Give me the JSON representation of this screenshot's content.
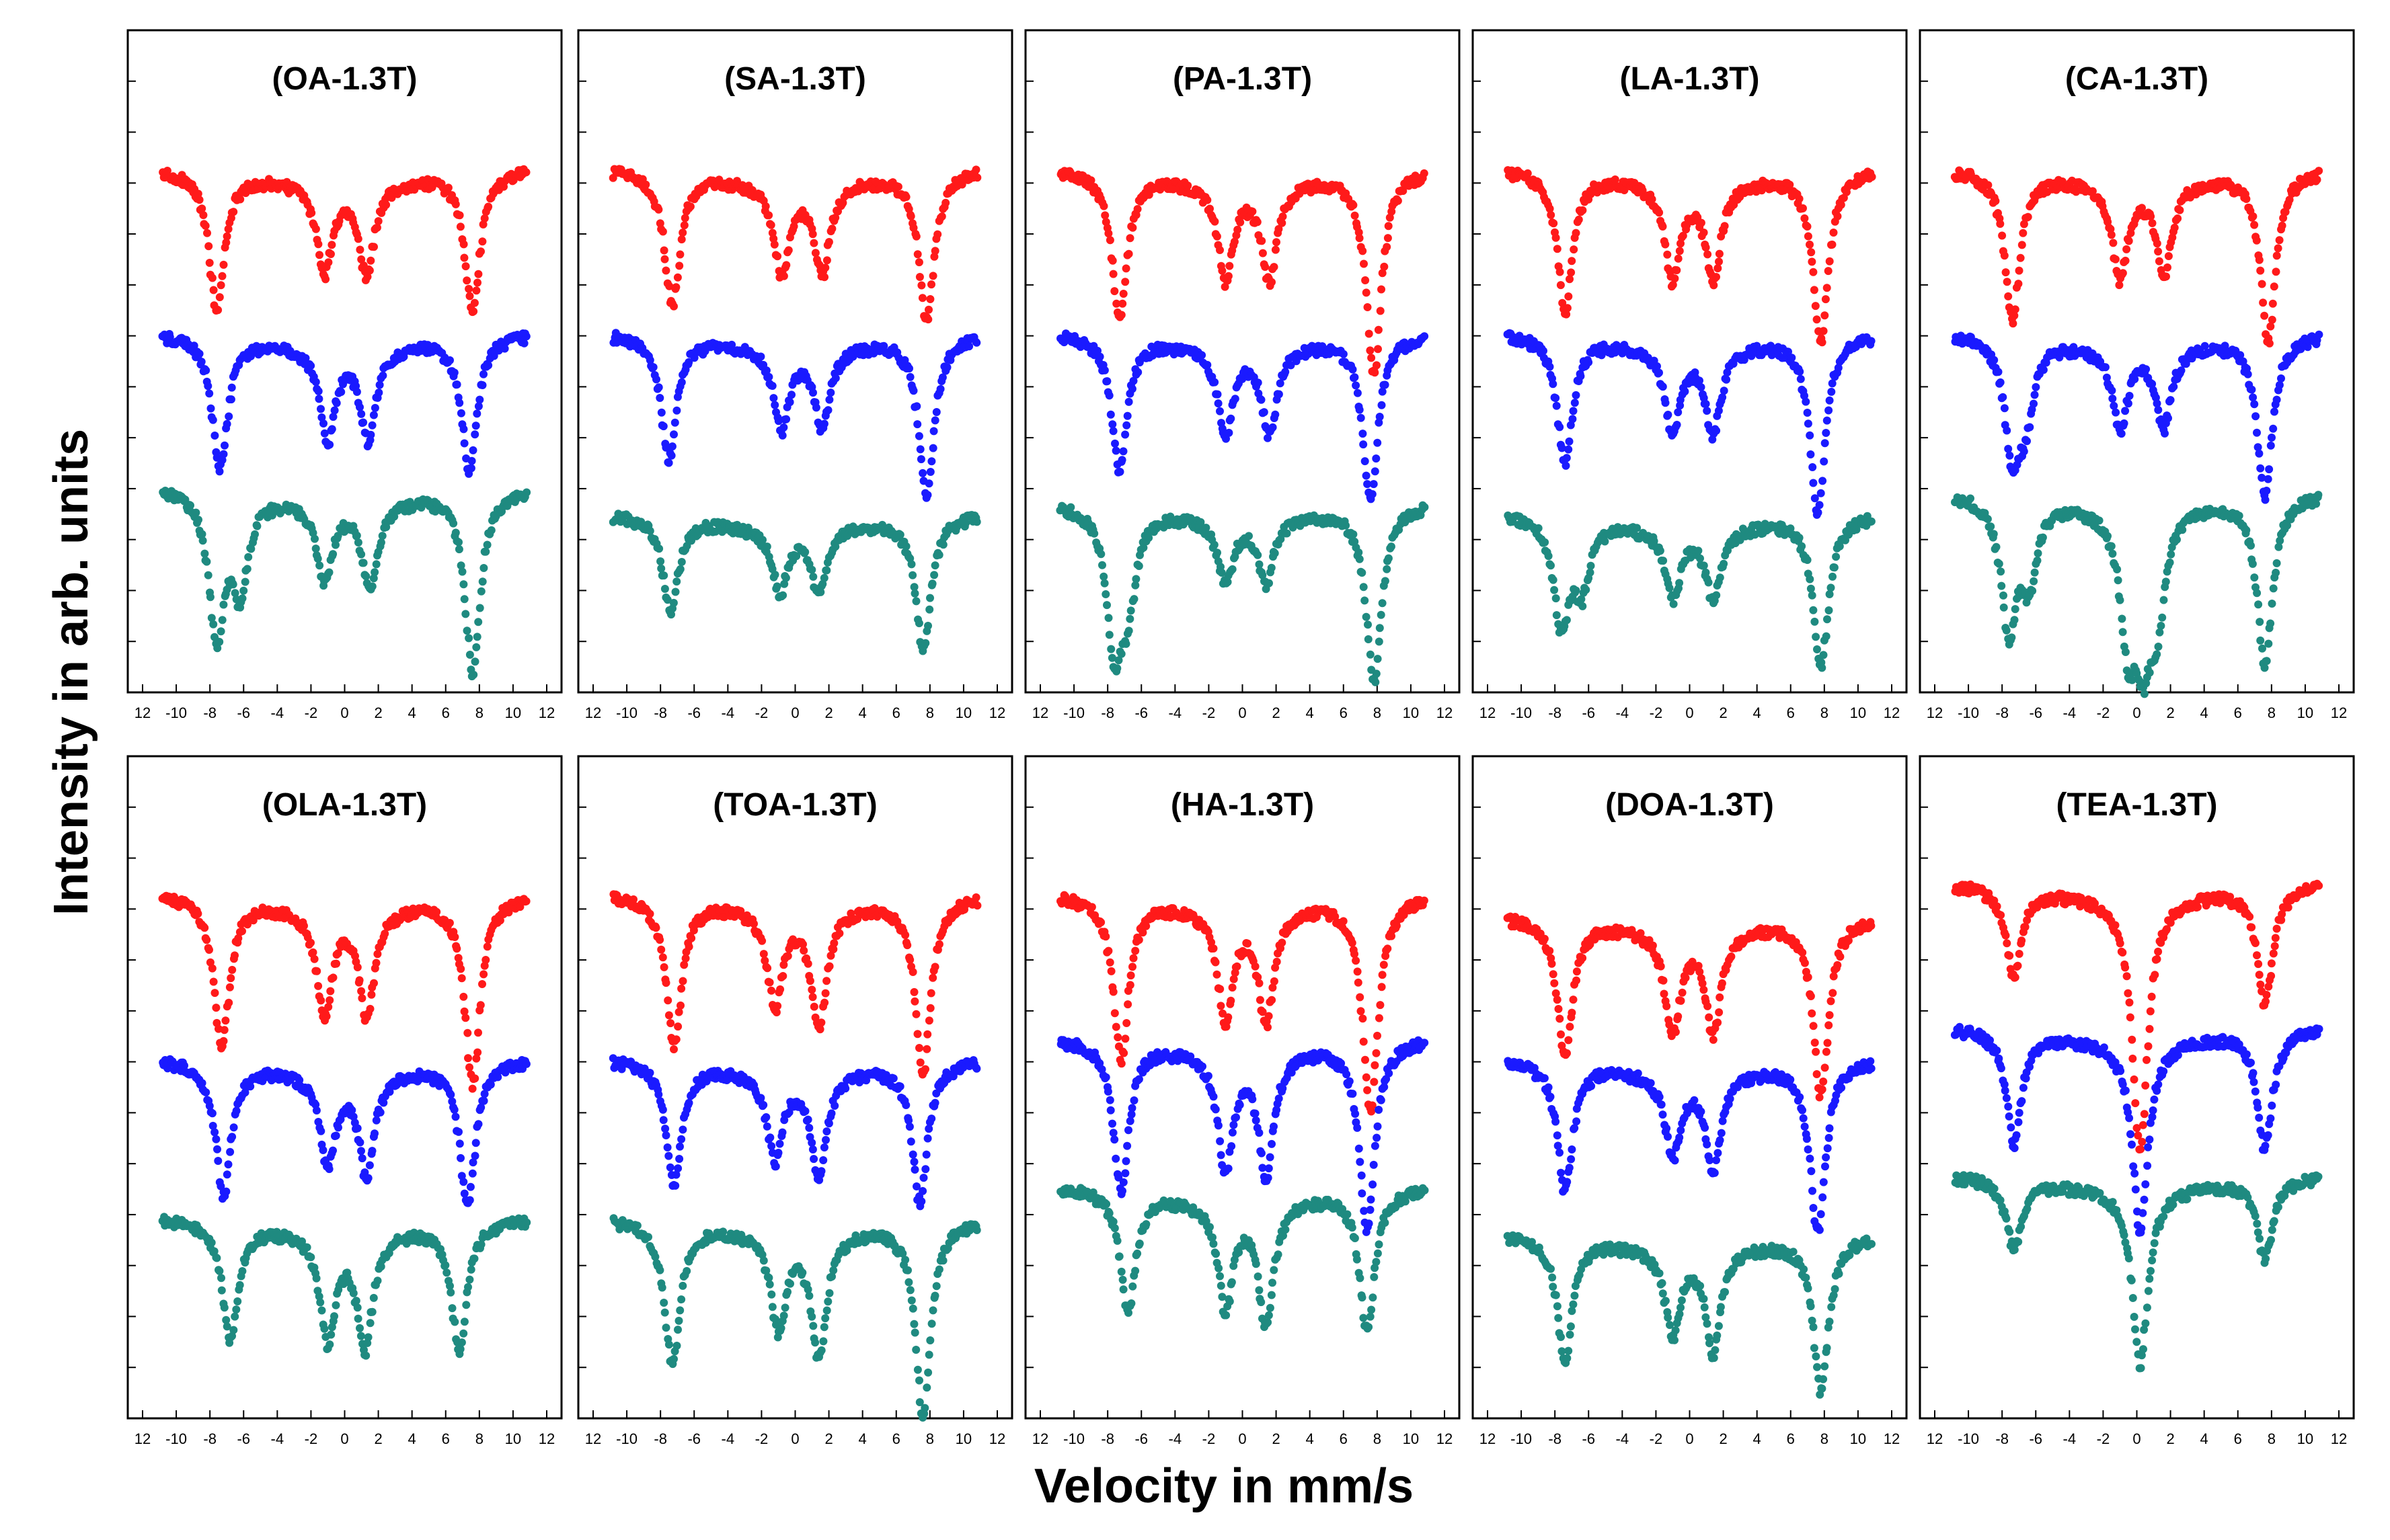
{
  "figure": {
    "ylabel": "Intensity in arb. units",
    "xlabel": "Velocity in mm/s",
    "series_colors": {
      "top": "#ff1a1a",
      "middle": "#1a1aff",
      "bottom": "#1f8a80"
    }
  },
  "chart_data": [
    {
      "type": "scatter",
      "title": "(OA-1.3T)",
      "xlabel": "Velocity in mm/s",
      "ylabel": "Intensity in arb. units",
      "xlim": [
        -12,
        12
      ],
      "xticks": [
        "12",
        "-10",
        "-8",
        "-6",
        "-4",
        "-2",
        "0",
        "2",
        "4",
        "6",
        "8",
        "10",
        "12"
      ],
      "series": [
        {
          "name": "top",
          "color": "#ff1a1a",
          "baseline": 0.93,
          "peaks": [
            [
              -7.6,
              0.26
            ],
            [
              -1.2,
              0.17
            ],
            [
              1.3,
              0.17
            ],
            [
              7.6,
              0.26
            ]
          ]
        },
        {
          "name": "middle",
          "color": "#1a1aff",
          "baseline": 0.62,
          "peaks": [
            [
              -7.4,
              0.25
            ],
            [
              -1.0,
              0.17
            ],
            [
              1.4,
              0.17
            ],
            [
              7.4,
              0.25
            ]
          ]
        },
        {
          "name": "bottom",
          "color": "#1f8a80",
          "baseline": 0.33,
          "peaks": [
            [
              -7.6,
              0.27
            ],
            [
              -6.2,
              0.18
            ],
            [
              -1.2,
              0.15
            ],
            [
              1.5,
              0.16
            ],
            [
              7.6,
              0.34
            ]
          ]
        }
      ]
    },
    {
      "type": "scatter",
      "title": "(SA-1.3T)",
      "xlabel": "Velocity in mm/s",
      "ylabel": "Intensity in arb. units",
      "xlim": [
        -12,
        12
      ],
      "xticks": [
        "12",
        "-10",
        "-8",
        "-6",
        "-4",
        "-2",
        "0",
        "2",
        "4",
        "6",
        "8",
        "10",
        "12"
      ],
      "series": [
        {
          "name": "top",
          "color": "#ff1a1a",
          "baseline": 0.93,
          "peaks": [
            [
              -7.3,
              0.25
            ],
            [
              -0.8,
              0.17
            ],
            [
              1.6,
              0.17
            ],
            [
              7.8,
              0.28
            ]
          ]
        },
        {
          "name": "middle",
          "color": "#1a1aff",
          "baseline": 0.62,
          "peaks": [
            [
              -7.5,
              0.23
            ],
            [
              -0.8,
              0.15
            ],
            [
              1.6,
              0.15
            ],
            [
              7.8,
              0.3
            ]
          ]
        },
        {
          "name": "bottom",
          "color": "#1f8a80",
          "baseline": 0.28,
          "peaks": [
            [
              -7.4,
              0.18
            ],
            [
              -0.9,
              0.12
            ],
            [
              1.4,
              0.12
            ],
            [
              7.6,
              0.25
            ]
          ]
        }
      ]
    },
    {
      "type": "scatter",
      "title": "(PA-1.3T)",
      "xlabel": "Velocity in mm/s",
      "ylabel": "Intensity in arb. units",
      "xlim": [
        -12,
        12
      ],
      "xticks": [
        "12",
        "-10",
        "-8",
        "-6",
        "-4",
        "-2",
        "0",
        "2",
        "4",
        "6",
        "8",
        "10",
        "12"
      ],
      "series": [
        {
          "name": "top",
          "color": "#ff1a1a",
          "baseline": 0.93,
          "peaks": [
            [
              -7.3,
              0.28
            ],
            [
              -1.0,
              0.18
            ],
            [
              1.6,
              0.18
            ],
            [
              7.8,
              0.38
            ]
          ]
        },
        {
          "name": "middle",
          "color": "#1a1aff",
          "baseline": 0.62,
          "peaks": [
            [
              -7.3,
              0.25
            ],
            [
              -1.0,
              0.16
            ],
            [
              1.6,
              0.16
            ],
            [
              7.6,
              0.31
            ]
          ]
        },
        {
          "name": "bottom",
          "color": "#1f8a80",
          "baseline": 0.3,
          "peaks": [
            [
              -7.6,
              0.25
            ],
            [
              -6.8,
              0.16
            ],
            [
              -1.0,
              0.12
            ],
            [
              1.4,
              0.12
            ],
            [
              7.8,
              0.33
            ]
          ]
        }
      ]
    },
    {
      "type": "scatter",
      "title": "(LA-1.3T)",
      "xlabel": "Velocity in mm/s",
      "ylabel": "Intensity in arb. units",
      "xlim": [
        -12,
        12
      ],
      "xticks": [
        "12",
        "-10",
        "-8",
        "-6",
        "-4",
        "-2",
        "0",
        "2",
        "4",
        "6",
        "8",
        "10",
        "12"
      ],
      "series": [
        {
          "name": "top",
          "color": "#ff1a1a",
          "baseline": 0.93,
          "peaks": [
            [
              -7.4,
              0.26
            ],
            [
              -1.0,
              0.18
            ],
            [
              1.4,
              0.18
            ],
            [
              7.8,
              0.32
            ]
          ]
        },
        {
          "name": "middle",
          "color": "#1a1aff",
          "baseline": 0.62,
          "peaks": [
            [
              -7.4,
              0.24
            ],
            [
              -1.0,
              0.16
            ],
            [
              1.4,
              0.16
            ],
            [
              7.6,
              0.33
            ]
          ]
        },
        {
          "name": "bottom",
          "color": "#1f8a80",
          "baseline": 0.28,
          "peaks": [
            [
              -7.6,
              0.2
            ],
            [
              -6.4,
              0.12
            ],
            [
              -1.0,
              0.13
            ],
            [
              1.4,
              0.13
            ],
            [
              7.8,
              0.28
            ]
          ]
        }
      ]
    },
    {
      "type": "scatter",
      "title": "(CA-1.3T)",
      "xlabel": "Velocity in mm/s",
      "ylabel": "Intensity in arb. units",
      "xlim": [
        -12,
        12
      ],
      "xticks": [
        "12",
        "-10",
        "-8",
        "-6",
        "-4",
        "-2",
        "0",
        "2",
        "4",
        "6",
        "8",
        "10",
        "12"
      ],
      "series": [
        {
          "name": "top",
          "color": "#ff1a1a",
          "baseline": 0.93,
          "peaks": [
            [
              -7.4,
              0.28
            ],
            [
              -1.0,
              0.18
            ],
            [
              1.6,
              0.17
            ],
            [
              7.8,
              0.32
            ]
          ]
        },
        {
          "name": "middle",
          "color": "#1a1aff",
          "baseline": 0.62,
          "peaks": [
            [
              -7.4,
              0.21
            ],
            [
              -6.6,
              0.13
            ],
            [
              -1.0,
              0.15
            ],
            [
              1.6,
              0.15
            ],
            [
              7.6,
              0.3
            ]
          ]
        },
        {
          "name": "bottom",
          "color": "#1f8a80",
          "baseline": 0.32,
          "peaks": [
            [
              -7.6,
              0.25
            ],
            [
              -6.4,
              0.14
            ],
            [
              -0.5,
              0.24
            ],
            [
              0.4,
              0.22
            ],
            [
              1.2,
              0.18
            ],
            [
              7.6,
              0.32
            ]
          ]
        }
      ]
    },
    {
      "type": "scatter",
      "title": "(OLA-1.3T)",
      "xlabel": "Velocity in mm/s",
      "ylabel": "Intensity in arb. units",
      "xlim": [
        -12,
        12
      ],
      "xticks": [
        "12",
        "-10",
        "-8",
        "-6",
        "-4",
        "-2",
        "0",
        "2",
        "4",
        "6",
        "8",
        "10",
        "12"
      ],
      "series": [
        {
          "name": "top",
          "color": "#ff1a1a",
          "baseline": 0.93,
          "peaks": [
            [
              -7.3,
              0.28
            ],
            [
              -1.2,
              0.2
            ],
            [
              1.3,
              0.2
            ],
            [
              7.6,
              0.35
            ]
          ]
        },
        {
          "name": "middle",
          "color": "#1a1aff",
          "baseline": 0.62,
          "peaks": [
            [
              -7.2,
              0.25
            ],
            [
              -1.0,
              0.17
            ],
            [
              1.3,
              0.19
            ],
            [
              7.3,
              0.27
            ]
          ]
        },
        {
          "name": "bottom",
          "color": "#1f8a80",
          "baseline": 0.32,
          "peaks": [
            [
              -6.8,
              0.22
            ],
            [
              -1.0,
              0.2
            ],
            [
              1.2,
              0.22
            ],
            [
              6.8,
              0.24
            ]
          ]
        }
      ]
    },
    {
      "type": "scatter",
      "title": "(TOA-1.3T)",
      "xlabel": "Velocity in mm/s",
      "ylabel": "Intensity in arb. units",
      "xlim": [
        -12,
        12
      ],
      "xticks": [
        "12",
        "-10",
        "-8",
        "-6",
        "-4",
        "-2",
        "0",
        "2",
        "4",
        "6",
        "8",
        "10",
        "12"
      ],
      "series": [
        {
          "name": "top",
          "color": "#ff1a1a",
          "baseline": 0.93,
          "peaks": [
            [
              -7.2,
              0.28
            ],
            [
              -1.2,
              0.18
            ],
            [
              1.4,
              0.22
            ],
            [
              7.6,
              0.33
            ]
          ]
        },
        {
          "name": "middle",
          "color": "#1a1aff",
          "baseline": 0.62,
          "peaks": [
            [
              -7.2,
              0.23
            ],
            [
              -1.2,
              0.16
            ],
            [
              1.4,
              0.19
            ],
            [
              7.4,
              0.26
            ]
          ]
        },
        {
          "name": "bottom",
          "color": "#1f8a80",
          "baseline": 0.32,
          "peaks": [
            [
              -7.3,
              0.27
            ],
            [
              -1.0,
              0.18
            ],
            [
              1.4,
              0.23
            ],
            [
              7.6,
              0.36
            ]
          ]
        }
      ]
    },
    {
      "type": "scatter",
      "title": "(HA-1.3T)",
      "xlabel": "Velocity in mm/s",
      "ylabel": "Intensity in arb. units",
      "xlim": [
        -12,
        12
      ],
      "xticks": [
        "12",
        "-10",
        "-8",
        "-6",
        "-4",
        "-2",
        "0",
        "2",
        "4",
        "6",
        "8",
        "10",
        "12"
      ],
      "series": [
        {
          "name": "top",
          "color": "#ff1a1a",
          "baseline": 0.93,
          "peaks": [
            [
              -7.2,
              0.3
            ],
            [
              -1.0,
              0.21
            ],
            [
              1.4,
              0.21
            ],
            [
              7.6,
              0.4
            ]
          ]
        },
        {
          "name": "middle",
          "color": "#1a1aff",
          "baseline": 0.66,
          "peaks": [
            [
              -7.2,
              0.28
            ],
            [
              -1.0,
              0.22
            ],
            [
              1.4,
              0.23
            ],
            [
              7.4,
              0.35
            ]
          ]
        },
        {
          "name": "bottom",
          "color": "#1f8a80",
          "baseline": 0.38,
          "peaks": [
            [
              -6.8,
              0.23
            ],
            [
              -1.0,
              0.2
            ],
            [
              1.4,
              0.23
            ],
            [
              7.4,
              0.26
            ]
          ]
        }
      ]
    },
    {
      "type": "scatter",
      "title": "(DOA-1.3T)",
      "xlabel": "Velocity in mm/s",
      "ylabel": "Intensity in arb. units",
      "xlim": [
        -12,
        12
      ],
      "xticks": [
        "12",
        "-10",
        "-8",
        "-6",
        "-4",
        "-2",
        "0",
        "2",
        "4",
        "6",
        "8",
        "10",
        "12"
      ],
      "series": [
        {
          "name": "top",
          "color": "#ff1a1a",
          "baseline": 0.89,
          "peaks": [
            [
              -7.4,
              0.26
            ],
            [
              -1.0,
              0.19
            ],
            [
              1.4,
              0.19
            ],
            [
              7.8,
              0.33
            ]
          ]
        },
        {
          "name": "middle",
          "color": "#1a1aff",
          "baseline": 0.62,
          "peaks": [
            [
              -7.4,
              0.24
            ],
            [
              -1.0,
              0.15
            ],
            [
              1.4,
              0.18
            ],
            [
              7.6,
              0.32
            ]
          ]
        },
        {
          "name": "bottom",
          "color": "#1f8a80",
          "baseline": 0.29,
          "peaks": [
            [
              -7.4,
              0.23
            ],
            [
              -1.0,
              0.16
            ],
            [
              1.4,
              0.19
            ],
            [
              7.8,
              0.29
            ]
          ]
        }
      ]
    },
    {
      "type": "scatter",
      "title": "(TEA-1.3T)",
      "xlabel": "Velocity in mm/s",
      "ylabel": "Intensity in arb. units",
      "xlim": [
        -12,
        12
      ],
      "xticks": [
        "12",
        "-10",
        "-8",
        "-6",
        "-4",
        "-2",
        "0",
        "2",
        "4",
        "6",
        "8",
        "10",
        "12"
      ],
      "series": [
        {
          "name": "top",
          "color": "#ff1a1a",
          "baseline": 0.95,
          "peaks": [
            [
              -7.3,
              0.17
            ],
            [
              0.2,
              0.48
            ],
            [
              7.6,
              0.22
            ]
          ]
        },
        {
          "name": "middle",
          "color": "#1a1aff",
          "baseline": 0.68,
          "peaks": [
            [
              -7.3,
              0.21
            ],
            [
              0.2,
              0.36
            ],
            [
              7.6,
              0.22
            ]
          ]
        },
        {
          "name": "bottom",
          "color": "#1f8a80",
          "baseline": 0.4,
          "peaks": [
            [
              -7.3,
              0.13
            ],
            [
              0.2,
              0.33
            ],
            [
              7.6,
              0.15
            ]
          ]
        }
      ]
    }
  ]
}
